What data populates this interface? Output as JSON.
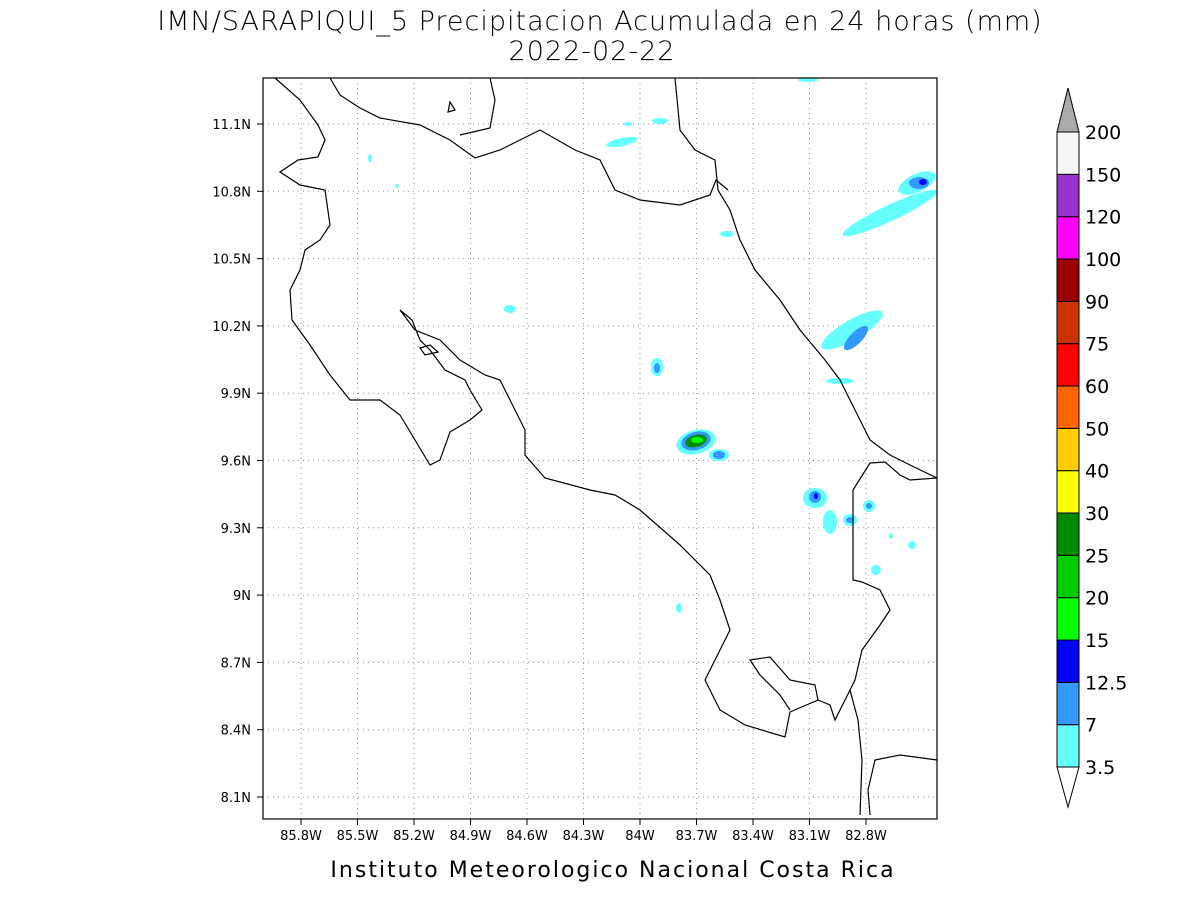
{
  "header": {
    "title": "IMN/SARAPIQUI_5 Precipitacion Acumulada en 24 horas (mm)",
    "date": "2022-02-22"
  },
  "map": {
    "lon_ticks": [
      "85.8W",
      "85.5W",
      "85.2W",
      "84.9W",
      "84.6W",
      "84.3W",
      "84W",
      "83.7W",
      "83.4W",
      "83.1W",
      "82.8W"
    ],
    "lat_ticks": [
      "11.1N",
      "10.8N",
      "10.5N",
      "10.2N",
      "9.9N",
      "9.6N",
      "9.3N",
      "9N",
      "8.7N",
      "8.4N",
      "8.1N"
    ]
  },
  "colorbar": {
    "labels": [
      "3.5",
      "7",
      "12.5",
      "15",
      "20",
      "25",
      "30",
      "40",
      "50",
      "60",
      "75",
      "90",
      "100",
      "120",
      "150",
      "200"
    ],
    "colors": [
      "#ffffff",
      "#66ffff",
      "#3399ff",
      "#0000ff",
      "#00ff00",
      "#00cc00",
      "#008c00",
      "#ffff00",
      "#ffcc00",
      "#ff6600",
      "#ff0000",
      "#cc3300",
      "#990000",
      "#ff00ff",
      "#9933cc",
      "#f5f5f5",
      "#aaaaaa"
    ]
  },
  "footer": "Instituto Meteorologico Nacional Costa Rica"
}
